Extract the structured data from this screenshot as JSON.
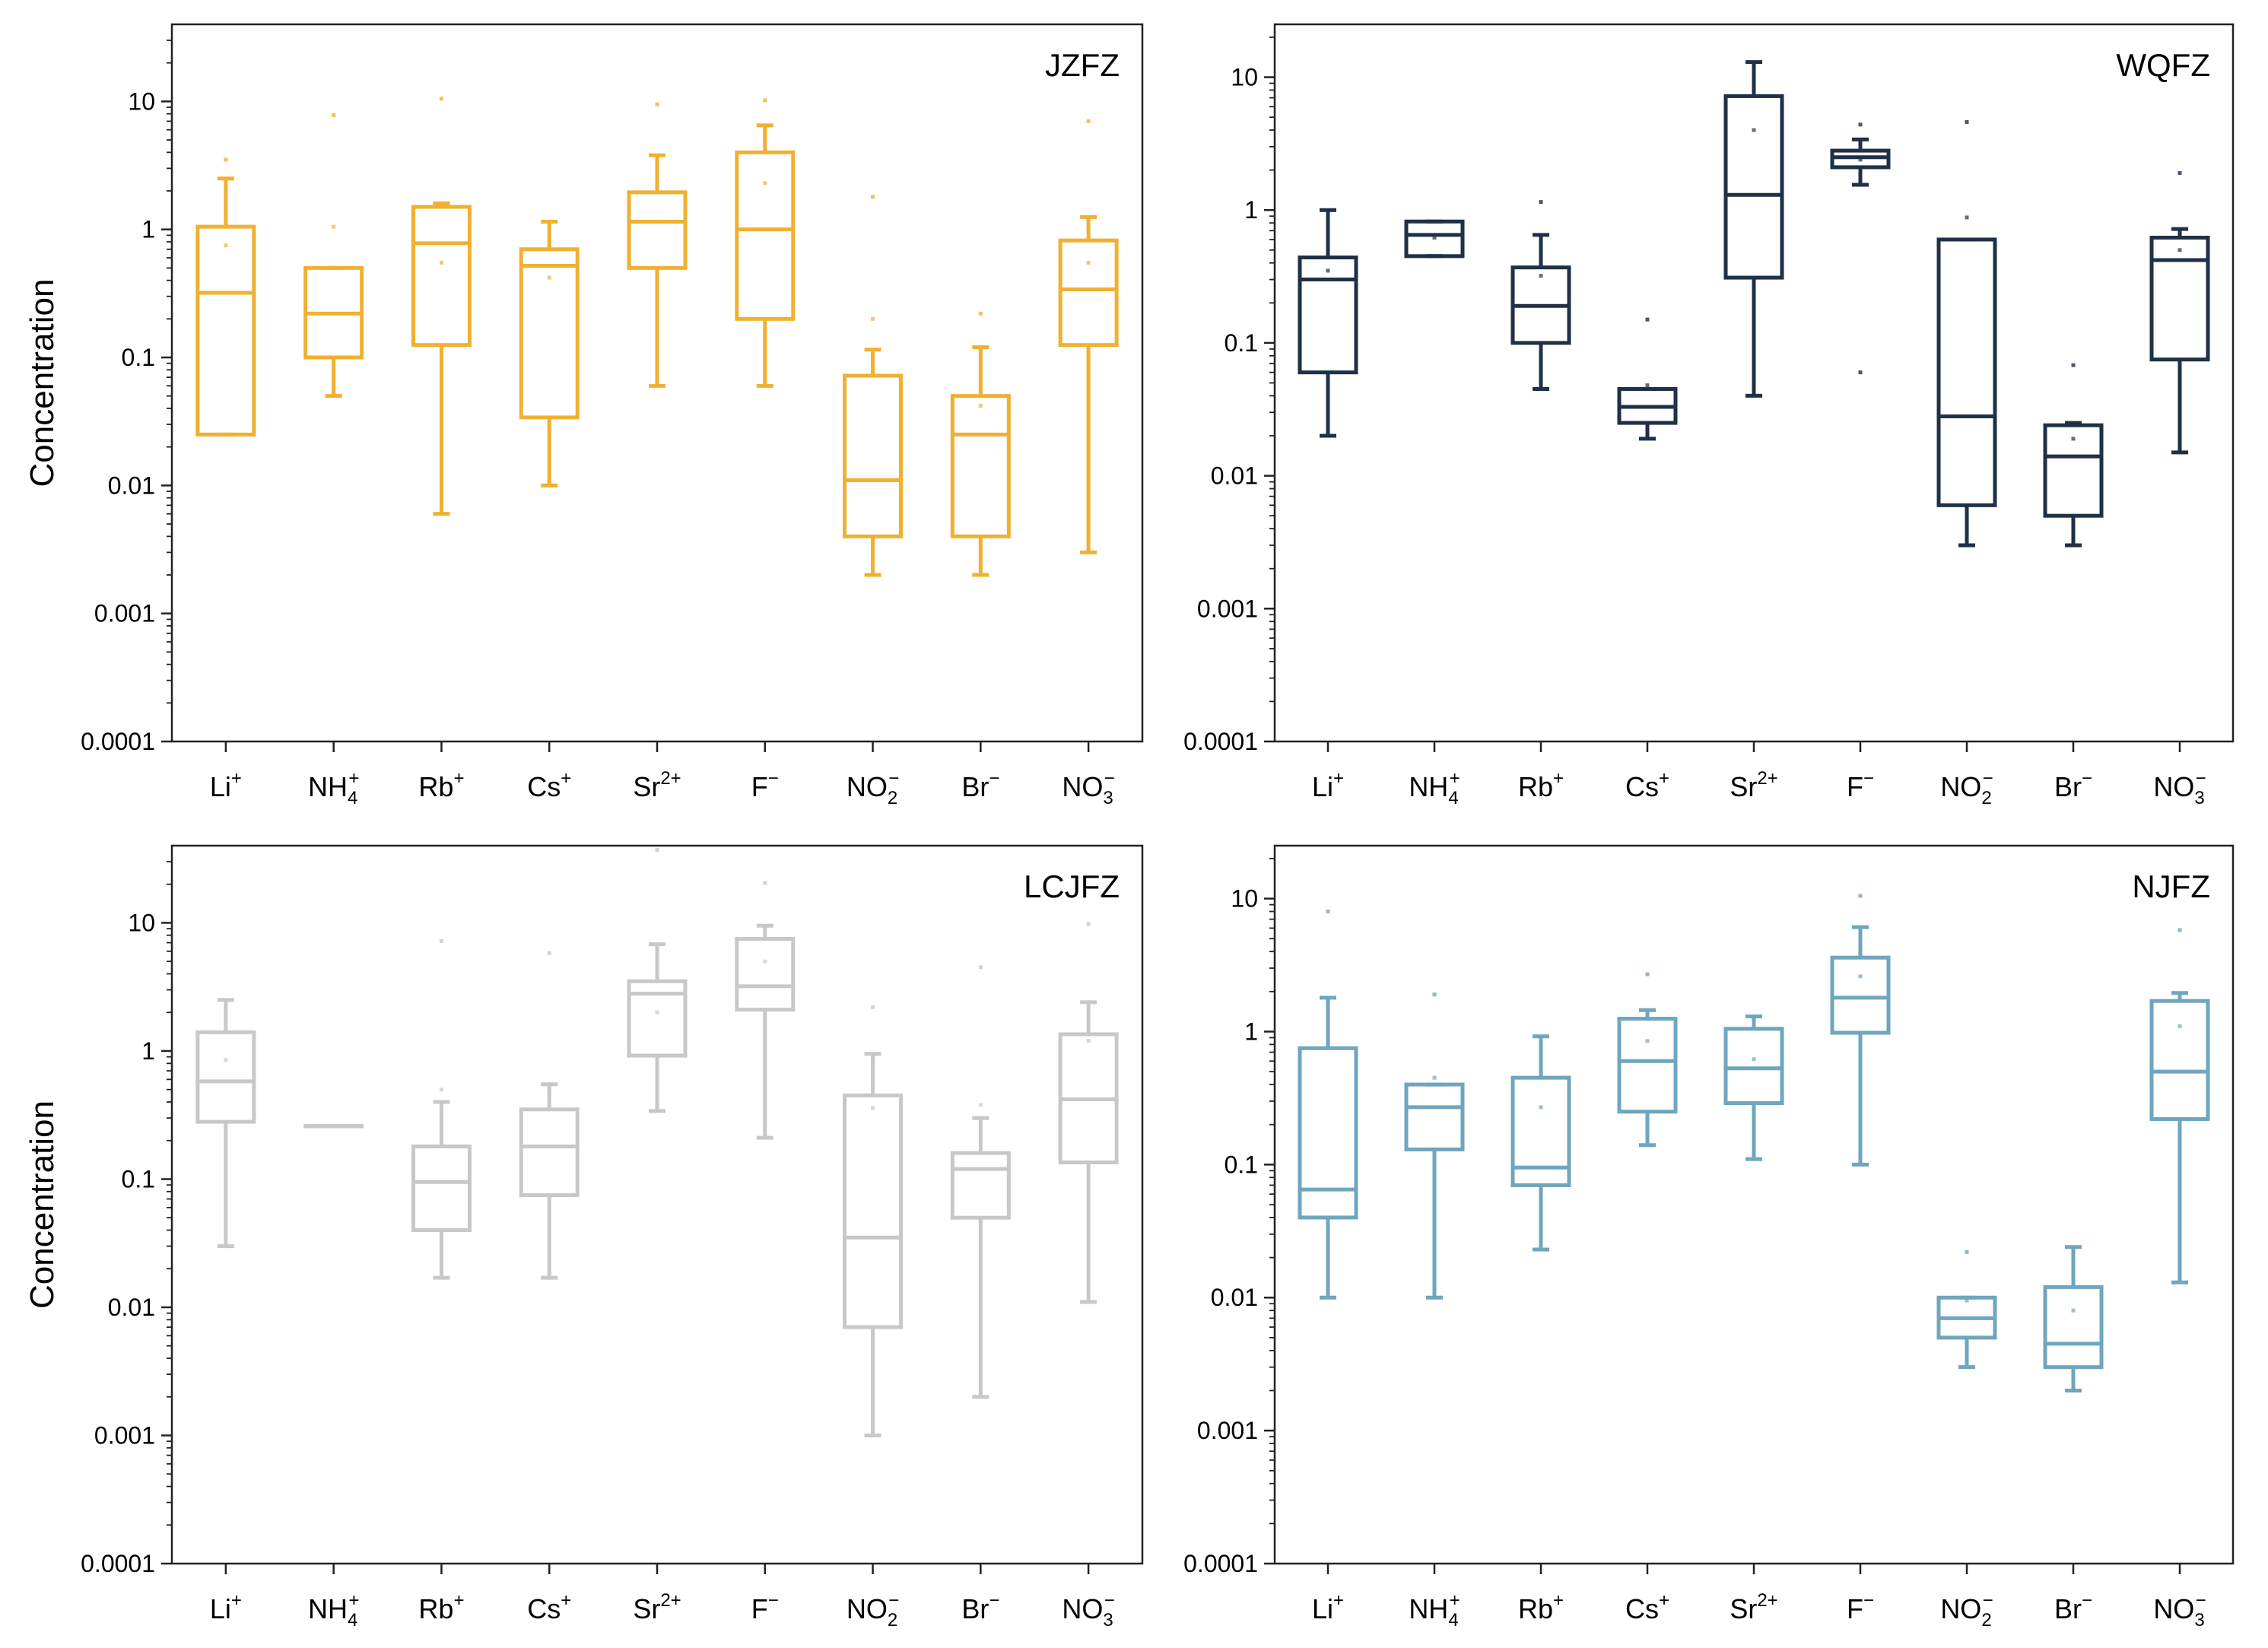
{
  "chart_data": [
    {
      "type": "box",
      "title": "JZFZ",
      "ylabel": "Concentration",
      "yscale": "log",
      "ylim": [
        0.0001,
        40
      ],
      "yticks": [
        "0.0001",
        "0.001",
        "0.01",
        "0.1",
        "1",
        "10"
      ],
      "categories": [
        "Li+",
        "NH4+",
        "Rb+",
        "Cs+",
        "Sr2+",
        "F−",
        "NO2−",
        "Br−",
        "NO3−"
      ],
      "color": "#F0B030",
      "boxes": [
        {
          "min": 0.025,
          "q1": 0.025,
          "median": 0.32,
          "q3": 1.05,
          "max": 2.5,
          "mean": 0.75,
          "outliers": [
            3.5
          ]
        },
        {
          "min": 0.05,
          "q1": 0.1,
          "median": 0.22,
          "q3": 0.5,
          "max": 0.5,
          "mean": 1.05,
          "outliers": [
            7.8
          ]
        },
        {
          "min": 0.006,
          "q1": 0.125,
          "median": 0.78,
          "q3": 1.5,
          "max": 1.6,
          "mean": 0.55,
          "outliers": [
            10.5
          ]
        },
        {
          "min": 0.01,
          "q1": 0.034,
          "median": 0.52,
          "q3": 0.7,
          "max": 1.15,
          "mean": 0.42,
          "outliers": []
        },
        {
          "min": 0.06,
          "q1": 0.5,
          "median": 1.15,
          "q3": 1.95,
          "max": 3.8,
          "mean": 1.15,
          "outliers": [
            9.5
          ]
        },
        {
          "min": 0.06,
          "q1": 0.2,
          "median": 1.0,
          "q3": 4.0,
          "max": 6.5,
          "mean": 2.3,
          "outliers": [
            10.2
          ]
        },
        {
          "min": 0.002,
          "q1": 0.004,
          "median": 0.011,
          "q3": 0.072,
          "max": 0.115,
          "mean": 0.2,
          "outliers": [
            1.8
          ]
        },
        {
          "min": 0.002,
          "q1": 0.004,
          "median": 0.025,
          "q3": 0.05,
          "max": 0.12,
          "mean": 0.042,
          "outliers": [
            0.22
          ]
        },
        {
          "min": 0.003,
          "q1": 0.125,
          "median": 0.34,
          "q3": 0.82,
          "max": 1.25,
          "mean": 0.55,
          "outliers": [
            7.0
          ]
        }
      ]
    },
    {
      "type": "box",
      "title": "WQFZ",
      "ylabel": "",
      "yscale": "log",
      "ylim": [
        0.0001,
        25
      ],
      "yticks": [
        "0.0001",
        "0.001",
        "0.01",
        "0.1",
        "1",
        "10"
      ],
      "categories": [
        "Li+",
        "NH4+",
        "Rb+",
        "Cs+",
        "Sr2+",
        "F−",
        "NO2−",
        "Br−",
        "NO3−"
      ],
      "color": "#1F3047",
      "boxes": [
        {
          "min": 0.02,
          "q1": 0.06,
          "median": 0.3,
          "q3": 0.44,
          "max": 1.0,
          "mean": 0.35,
          "outliers": []
        },
        {
          "min": 0.45,
          "q1": 0.45,
          "median": 0.65,
          "q3": 0.82,
          "max": 0.82,
          "mean": 0.62,
          "outliers": []
        },
        {
          "min": 0.045,
          "q1": 0.1,
          "median": 0.19,
          "q3": 0.37,
          "max": 0.65,
          "mean": 0.32,
          "outliers": [
            1.15
          ]
        },
        {
          "min": 0.019,
          "q1": 0.025,
          "median": 0.033,
          "q3": 0.045,
          "max": 0.045,
          "mean": 0.048,
          "outliers": [
            0.15
          ]
        },
        {
          "min": 0.04,
          "q1": 0.31,
          "median": 1.3,
          "q3": 7.2,
          "max": 13,
          "mean": 4.0,
          "outliers": []
        },
        {
          "min": 1.55,
          "q1": 2.1,
          "median": 2.5,
          "q3": 2.8,
          "max": 3.4,
          "mean": 2.4,
          "outliers": [
            4.4,
            0.06
          ]
        },
        {
          "min": 0.003,
          "q1": 0.006,
          "median": 0.028,
          "q3": 0.6,
          "max": 0.6,
          "mean": 0.88,
          "outliers": [
            4.6
          ]
        },
        {
          "min": 0.003,
          "q1": 0.005,
          "median": 0.014,
          "q3": 0.024,
          "max": 0.025,
          "mean": 0.019,
          "outliers": [
            0.068
          ]
        },
        {
          "min": 0.015,
          "q1": 0.075,
          "median": 0.42,
          "q3": 0.62,
          "max": 0.72,
          "mean": 0.5,
          "outliers": [
            1.9
          ]
        }
      ]
    },
    {
      "type": "box",
      "title": "LCJFZ",
      "ylabel": "Concentration",
      "yscale": "log",
      "ylim": [
        0.0001,
        40
      ],
      "yticks": [
        "0.0001",
        "0.001",
        "0.01",
        "0.1",
        "1",
        "10"
      ],
      "categories": [
        "Li+",
        "NH4+",
        "Rb+",
        "Cs+",
        "Sr2+",
        "F−",
        "NO2−",
        "Br−",
        "NO3−"
      ],
      "color": "#C8C8C8",
      "boxes": [
        {
          "min": 0.03,
          "q1": 0.28,
          "median": 0.58,
          "q3": 1.4,
          "max": 2.5,
          "mean": 0.85,
          "outliers": []
        },
        {
          "min": 0.26,
          "q1": 0.26,
          "median": 0.26,
          "q3": 0.26,
          "max": 0.26,
          "mean": 0.26,
          "outliers": []
        },
        {
          "min": 0.017,
          "q1": 0.04,
          "median": 0.095,
          "q3": 0.18,
          "max": 0.4,
          "mean": 0.5,
          "outliers": [
            7.2
          ]
        },
        {
          "min": 0.017,
          "q1": 0.075,
          "median": 0.18,
          "q3": 0.35,
          "max": 0.55,
          "mean": 0.5,
          "outliers": [
            5.8
          ]
        },
        {
          "min": 0.34,
          "q1": 0.92,
          "median": 2.8,
          "q3": 3.5,
          "max": 6.8,
          "mean": 2.0,
          "outliers": [
            37
          ]
        },
        {
          "min": 0.21,
          "q1": 2.1,
          "median": 3.2,
          "q3": 7.5,
          "max": 9.5,
          "mean": 5.0,
          "outliers": [
            20.5
          ]
        },
        {
          "min": 0.001,
          "q1": 0.007,
          "median": 0.035,
          "q3": 0.45,
          "max": 0.95,
          "mean": 0.36,
          "outliers": [
            2.2
          ]
        },
        {
          "min": 0.002,
          "q1": 0.05,
          "median": 0.12,
          "q3": 0.16,
          "max": 0.3,
          "mean": 0.38,
          "outliers": [
            4.5
          ]
        },
        {
          "min": 0.011,
          "q1": 0.135,
          "median": 0.42,
          "q3": 1.35,
          "max": 2.4,
          "mean": 1.2,
          "outliers": [
            9.8
          ]
        }
      ]
    },
    {
      "type": "box",
      "title": "NJFZ",
      "ylabel": "",
      "yscale": "log",
      "ylim": [
        0.0001,
        25
      ],
      "yticks": [
        "0.0001",
        "0.001",
        "0.01",
        "0.1",
        "1",
        "10"
      ],
      "categories": [
        "Li+",
        "NH4+",
        "Rb+",
        "Cs+",
        "Sr2+",
        "F−",
        "NO2−",
        "Br−",
        "NO3−"
      ],
      "color": "#6FA6BE",
      "boxes": [
        {
          "min": 0.01,
          "q1": 0.04,
          "median": 0.065,
          "q3": 0.75,
          "max": 1.8,
          "mean": 0.8,
          "outliers": [
            8.0
          ]
        },
        {
          "min": 0.01,
          "q1": 0.13,
          "median": 0.27,
          "q3": 0.4,
          "max": 0.4,
          "mean": 0.45,
          "outliers": [
            1.9
          ]
        },
        {
          "min": 0.023,
          "q1": 0.07,
          "median": 0.095,
          "q3": 0.45,
          "max": 0.92,
          "mean": 0.27,
          "outliers": []
        },
        {
          "min": 0.14,
          "q1": 0.25,
          "median": 0.6,
          "q3": 1.25,
          "max": 1.45,
          "mean": 0.85,
          "outliers": [
            2.7
          ]
        },
        {
          "min": 0.11,
          "q1": 0.29,
          "median": 0.53,
          "q3": 1.05,
          "max": 1.3,
          "mean": 0.62,
          "outliers": []
        },
        {
          "min": 0.1,
          "q1": 0.98,
          "median": 1.8,
          "q3": 3.6,
          "max": 6.1,
          "mean": 2.6,
          "outliers": [
            10.5
          ]
        },
        {
          "min": 0.003,
          "q1": 0.005,
          "median": 0.007,
          "q3": 0.01,
          "max": 0.01,
          "mean": 0.0095,
          "outliers": [
            0.022
          ]
        },
        {
          "min": 0.002,
          "q1": 0.003,
          "median": 0.0045,
          "q3": 0.012,
          "max": 0.024,
          "mean": 0.008,
          "outliers": []
        },
        {
          "min": 0.013,
          "q1": 0.22,
          "median": 0.5,
          "q3": 1.7,
          "max": 1.95,
          "mean": 1.1,
          "outliers": [
            5.8
          ]
        }
      ]
    }
  ]
}
